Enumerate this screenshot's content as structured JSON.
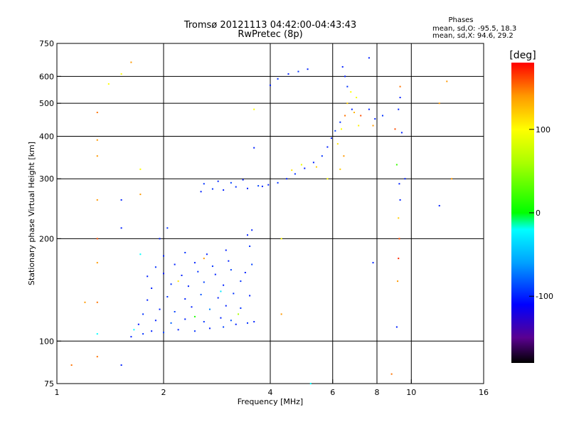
{
  "chart_data": {
    "type": "scatter",
    "title": "Tromsø 20121113 04:42:00-04:43:43",
    "subtitle": "RwPretec (8p)",
    "stats": {
      "heading": "Phases",
      "line1": "mean, sd,O: -95.5, 18.3",
      "line2": "mean, sd,X:  94.6, 29.2"
    },
    "xlabel": "Frequency [MHz]",
    "ylabel": "Stationary phase Virtual Height [km]",
    "x_scale": "log",
    "y_scale": "log",
    "xlim": [
      1,
      16
    ],
    "ylim": [
      75,
      750
    ],
    "x_ticks": [
      {
        "value": 1,
        "label": "1"
      },
      {
        "value": 2,
        "label": "2"
      },
      {
        "value": 4,
        "label": "4"
      },
      {
        "value": 6,
        "label": "6"
      },
      {
        "value": 8,
        "label": "8"
      },
      {
        "value": 10,
        "label": "10"
      },
      {
        "value": 16,
        "label": "16"
      }
    ],
    "y_ticks": [
      {
        "value": 75,
        "label": "75"
      },
      {
        "value": 100,
        "label": "100"
      },
      {
        "value": 200,
        "label": "200"
      },
      {
        "value": 300,
        "label": "300"
      },
      {
        "value": 400,
        "label": "400"
      },
      {
        "value": 500,
        "label": "500"
      },
      {
        "value": 600,
        "label": "600"
      },
      {
        "value": 750,
        "label": "750"
      }
    ],
    "grid_x": [
      2,
      4,
      6,
      8,
      10
    ],
    "grid_y": [
      100,
      200,
      300,
      400,
      500,
      600
    ],
    "grid": true,
    "colorbar": {
      "label": "[deg]",
      "range": [
        -180,
        180
      ],
      "ticks": [
        {
          "value": 100,
          "label": "100"
        },
        {
          "value": 0,
          "label": "0"
        },
        {
          "value": -100,
          "label": "-100"
        }
      ],
      "stops": [
        {
          "value": -180,
          "color": "#000000"
        },
        {
          "value": -150,
          "color": "#5a0090"
        },
        {
          "value": -110,
          "color": "#0000ff"
        },
        {
          "value": -60,
          "color": "#00a0ff"
        },
        {
          "value": -20,
          "color": "#00ffff"
        },
        {
          "value": 0,
          "color": "#00ff00"
        },
        {
          "value": 60,
          "color": "#aaff00"
        },
        {
          "value": 100,
          "color": "#ffff00"
        },
        {
          "value": 140,
          "color": "#ff9900"
        },
        {
          "value": 180,
          "color": "#ff0000"
        }
      ]
    },
    "series": [
      {
        "points": [
          [
            1.62,
            103,
            -100
          ],
          [
            1.75,
            105,
            -95
          ],
          [
            1.85,
            107,
            -100
          ],
          [
            2.0,
            106,
            -90
          ],
          [
            2.2,
            108,
            -100
          ],
          [
            2.45,
            107,
            -95
          ],
          [
            2.7,
            109,
            -100
          ],
          [
            2.95,
            110,
            -90
          ],
          [
            3.2,
            112,
            -100
          ],
          [
            3.45,
            113,
            -95
          ],
          [
            3.6,
            114,
            -100
          ],
          [
            1.7,
            112,
            -105
          ],
          [
            1.9,
            115,
            -100
          ],
          [
            2.1,
            113,
            -80
          ],
          [
            2.3,
            116,
            -100
          ],
          [
            2.6,
            114,
            -95
          ],
          [
            2.9,
            117,
            -100
          ],
          [
            3.1,
            115,
            -85
          ],
          [
            1.75,
            120,
            -95
          ],
          [
            1.95,
            124,
            -100
          ],
          [
            2.15,
            122,
            -90
          ],
          [
            2.4,
            126,
            -100
          ],
          [
            2.7,
            124,
            -70
          ],
          [
            3.0,
            127,
            -100
          ],
          [
            3.3,
            125,
            -95
          ],
          [
            1.8,
            132,
            -100
          ],
          [
            2.05,
            135,
            -95
          ],
          [
            2.3,
            133,
            -100
          ],
          [
            2.55,
            137,
            -85
          ],
          [
            2.85,
            134,
            -100
          ],
          [
            3.15,
            138,
            -95
          ],
          [
            3.5,
            136,
            -100
          ],
          [
            1.85,
            143,
            -100
          ],
          [
            2.1,
            147,
            -95
          ],
          [
            2.35,
            145,
            -100
          ],
          [
            2.6,
            149,
            -90
          ],
          [
            2.95,
            146,
            -100
          ],
          [
            3.3,
            150,
            -95
          ],
          [
            1.8,
            155,
            -100
          ],
          [
            2.0,
            158,
            -105
          ],
          [
            2.25,
            156,
            -100
          ],
          [
            2.5,
            160,
            -95
          ],
          [
            2.8,
            157,
            -100
          ],
          [
            3.1,
            162,
            -90
          ],
          [
            3.4,
            159,
            -100
          ],
          [
            1.9,
            165,
            -95
          ],
          [
            2.15,
            168,
            -100
          ],
          [
            2.45,
            170,
            -100
          ],
          [
            2.75,
            166,
            -95
          ],
          [
            3.05,
            172,
            -100
          ],
          [
            3.55,
            168,
            -90
          ],
          [
            2.0,
            178,
            -100
          ],
          [
            2.3,
            182,
            -95
          ],
          [
            2.65,
            180,
            -100
          ],
          [
            3.0,
            185,
            -100
          ],
          [
            3.5,
            190,
            -95
          ],
          [
            1.95,
            200,
            -100
          ],
          [
            2.05,
            215,
            -95
          ],
          [
            3.45,
            205,
            -100
          ],
          [
            3.55,
            212,
            -100
          ],
          [
            1.65,
            108,
            -20
          ],
          [
            2.45,
            118,
            10
          ],
          [
            2.9,
            140,
            -30
          ],
          [
            3.25,
            120,
            60
          ],
          [
            2.2,
            150,
            110
          ],
          [
            2.6,
            175,
            140
          ],
          [
            2.55,
            275,
            -100
          ],
          [
            2.75,
            280,
            -95
          ],
          [
            2.95,
            278,
            -100
          ],
          [
            3.2,
            284,
            -95
          ],
          [
            3.45,
            281,
            -100
          ],
          [
            3.7,
            286,
            -90
          ],
          [
            3.95,
            288,
            -100
          ],
          [
            4.2,
            292,
            -95
          ],
          [
            4.45,
            300,
            -100
          ],
          [
            4.7,
            310,
            -95
          ],
          [
            5.0,
            322,
            -100
          ],
          [
            5.3,
            335,
            -100
          ],
          [
            5.6,
            350,
            -95
          ],
          [
            5.8,
            372,
            -100
          ],
          [
            5.95,
            395,
            -100
          ],
          [
            6.1,
            415,
            -90
          ],
          [
            6.3,
            440,
            -95
          ],
          [
            2.6,
            290,
            -95
          ],
          [
            2.85,
            295,
            -100
          ],
          [
            3.1,
            292,
            -90
          ],
          [
            3.35,
            298,
            -100
          ],
          [
            3.8,
            285,
            -100
          ],
          [
            4.6,
            318,
            110
          ],
          [
            4.9,
            330,
            90
          ],
          [
            5.4,
            325,
            120
          ],
          [
            5.8,
            300,
            100
          ],
          [
            6.5,
            600,
            -100
          ],
          [
            6.6,
            560,
            -95
          ],
          [
            6.8,
            480,
            -100
          ],
          [
            6.2,
            380,
            110
          ],
          [
            6.35,
            420,
            100
          ],
          [
            6.5,
            460,
            150
          ],
          [
            6.6,
            500,
            120
          ],
          [
            6.75,
            540,
            100
          ],
          [
            6.9,
            470,
            130
          ],
          [
            7.1,
            430,
            105
          ],
          [
            6.45,
            350,
            140
          ],
          [
            6.3,
            320,
            120
          ],
          [
            7.0,
            520,
            95
          ],
          [
            7.2,
            460,
            160
          ],
          [
            7.6,
            480,
            -100
          ],
          [
            7.8,
            430,
            140
          ],
          [
            7.9,
            450,
            -100
          ],
          [
            8.3,
            460,
            -95
          ],
          [
            4.0,
            565,
            -100
          ],
          [
            4.2,
            590,
            -95
          ],
          [
            4.5,
            610,
            -100
          ],
          [
            4.8,
            620,
            -95
          ],
          [
            5.1,
            630,
            -100
          ],
          [
            6.4,
            640,
            -100
          ],
          [
            7.6,
            680,
            -100
          ],
          [
            9.1,
            110,
            -100
          ],
          [
            9.15,
            150,
            140
          ],
          [
            9.2,
            175,
            170
          ],
          [
            9.25,
            200,
            160
          ],
          [
            9.2,
            230,
            120
          ],
          [
            9.3,
            260,
            -100
          ],
          [
            9.25,
            290,
            -100
          ],
          [
            9.1,
            330,
            20
          ],
          [
            9.0,
            420,
            160
          ],
          [
            9.3,
            560,
            150
          ],
          [
            9.6,
            300,
            -100
          ],
          [
            9.4,
            410,
            -100
          ],
          [
            9.2,
            480,
            -100
          ],
          [
            9.3,
            520,
            -100
          ],
          [
            1.3,
            390,
            140
          ],
          [
            1.3,
            350,
            140
          ],
          [
            1.3,
            260,
            140
          ],
          [
            1.3,
            200,
            160
          ],
          [
            1.3,
            170,
            140
          ],
          [
            1.3,
            130,
            150
          ],
          [
            1.3,
            90,
            150
          ],
          [
            1.3,
            470,
            150
          ],
          [
            1.52,
            610,
            100
          ],
          [
            1.52,
            260,
            -100
          ],
          [
            1.52,
            215,
            -100
          ],
          [
            1.4,
            570,
            100
          ],
          [
            1.2,
            130,
            140
          ],
          [
            1.3,
            105,
            -20
          ],
          [
            1.1,
            85,
            150
          ],
          [
            1.52,
            85,
            -100
          ],
          [
            1.62,
            660,
            140
          ],
          [
            1.72,
            320,
            100
          ],
          [
            1.72,
            270,
            140
          ],
          [
            1.72,
            180,
            -20
          ],
          [
            12.0,
            500,
            140
          ],
          [
            12.6,
            580,
            140
          ],
          [
            12.0,
            250,
            -100
          ],
          [
            13.0,
            300,
            140
          ],
          [
            5.2,
            75,
            -20
          ],
          [
            7.8,
            170,
            -100
          ],
          [
            4.3,
            120,
            140
          ],
          [
            4.3,
            200,
            100
          ],
          [
            3.6,
            480,
            100
          ],
          [
            3.6,
            370,
            -100
          ],
          [
            8.8,
            80,
            150
          ]
        ]
      }
    ]
  }
}
